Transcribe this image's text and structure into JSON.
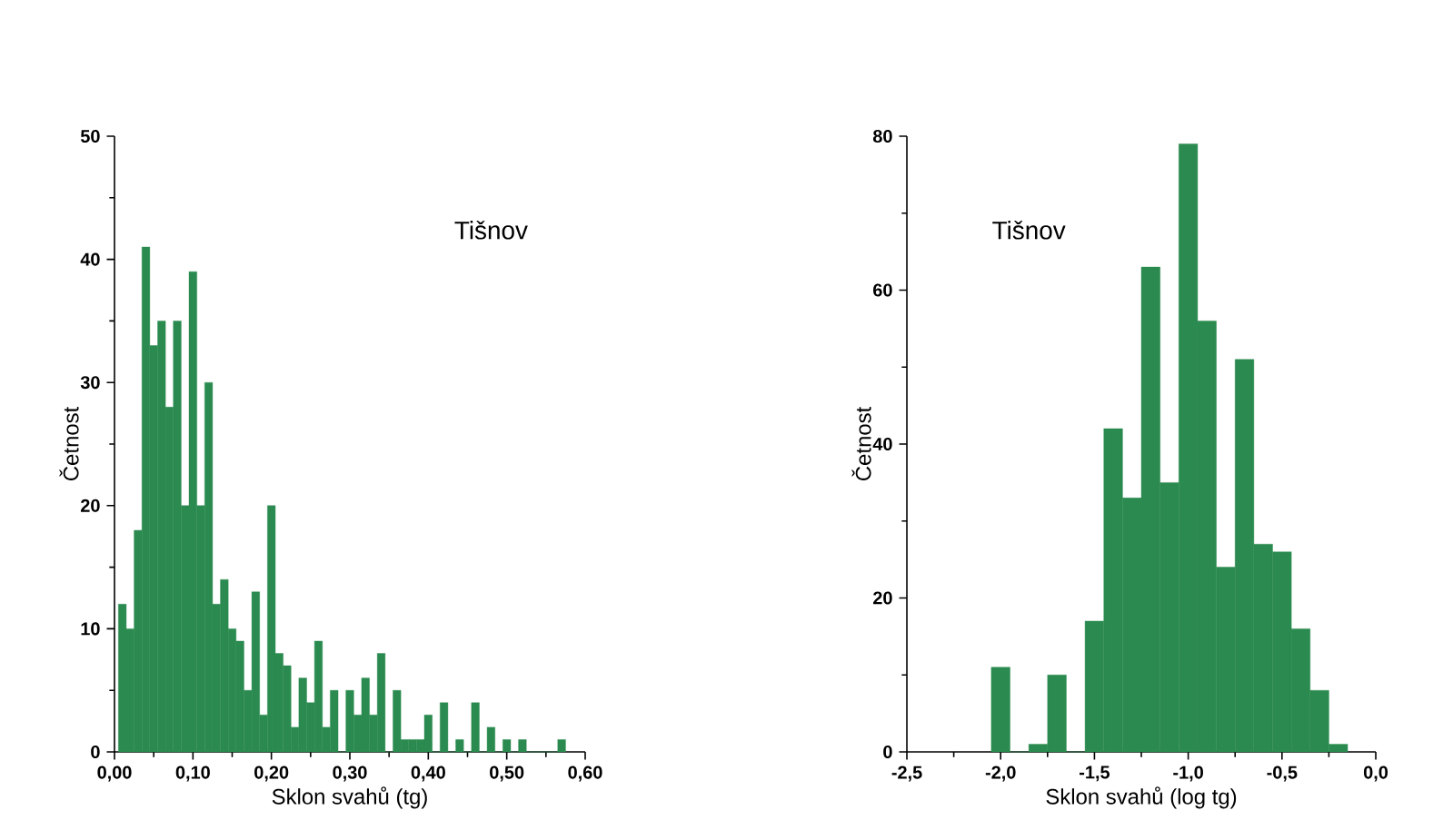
{
  "chart_data": [
    {
      "type": "histogram",
      "title": "Tišnov",
      "xlabel": "Sklon svahů (tg)",
      "ylabel": "Četnost",
      "color": "#2a8a4f",
      "bins": [
        0.005,
        0.015,
        0.025,
        0.035,
        0.045,
        0.055,
        0.065,
        0.075,
        0.085,
        0.095,
        0.105,
        0.115,
        0.125,
        0.135,
        0.145,
        0.155,
        0.165,
        0.175,
        0.185,
        0.195,
        0.205,
        0.215,
        0.225,
        0.235,
        0.245,
        0.255,
        0.265,
        0.275,
        0.285,
        0.295,
        0.305,
        0.315,
        0.325,
        0.335,
        0.345,
        0.355,
        0.365,
        0.375,
        0.385,
        0.395,
        0.405,
        0.415,
        0.425,
        0.435,
        0.445,
        0.455,
        0.465,
        0.475,
        0.485,
        0.495,
        0.505,
        0.515,
        0.525,
        0.535,
        0.545,
        0.555,
        0.565,
        0.575
      ],
      "values": [
        12,
        10,
        18,
        41,
        33,
        35,
        28,
        35,
        20,
        39,
        20,
        30,
        12,
        14,
        10,
        9,
        5,
        13,
        3,
        20,
        8,
        7,
        2,
        6,
        4,
        9,
        2,
        5,
        0,
        5,
        3,
        6,
        3,
        8,
        0,
        5,
        1,
        1,
        1,
        3,
        0,
        4,
        0,
        1,
        0,
        4,
        0,
        2,
        0,
        1,
        0,
        1,
        0,
        0,
        0,
        0,
        1
      ],
      "xlim": [
        0,
        0.6
      ],
      "ylim": [
        0,
        50
      ],
      "xticks": [
        {
          "value": 0,
          "label": "0,00"
        },
        {
          "value": 0.1,
          "label": "0,10"
        },
        {
          "value": 0.2,
          "label": "0,20"
        },
        {
          "value": 0.3,
          "label": "0,30"
        },
        {
          "value": 0.4,
          "label": "0,40"
        },
        {
          "value": 0.5,
          "label": "0,50"
        },
        {
          "value": 0.6,
          "label": "0,60"
        }
      ],
      "yticks": [
        0,
        10,
        20,
        30,
        40,
        50
      ]
    },
    {
      "type": "histogram",
      "title": "Tišnov",
      "xlabel": "Sklon svahů (log tg)",
      "ylabel": "Četnost",
      "color": "#2a8a4f",
      "bins": [
        -2.05,
        -1.95,
        -1.85,
        -1.75,
        -1.65,
        -1.55,
        -1.45,
        -1.35,
        -1.25,
        -1.15,
        -1.05,
        -0.95,
        -0.85,
        -0.75,
        -0.65,
        -0.55,
        -0.45,
        -0.35,
        -0.25,
        -0.15
      ],
      "values": [
        11,
        0,
        1,
        10,
        0,
        17,
        42,
        33,
        63,
        35,
        79,
        56,
        24,
        51,
        27,
        26,
        16,
        8,
        1
      ],
      "xlim": [
        -2.5,
        0.0
      ],
      "ylim": [
        0,
        80
      ],
      "xticks": [
        {
          "value": -2.5,
          "label": "-2,5"
        },
        {
          "value": -2.0,
          "label": "-2,0"
        },
        {
          "value": -1.5,
          "label": "-1,5"
        },
        {
          "value": -1.0,
          "label": "-1,0"
        },
        {
          "value": -0.5,
          "label": "-0,5"
        },
        {
          "value": 0.0,
          "label": "0,0"
        }
      ],
      "yticks": [
        0,
        20,
        40,
        60,
        80
      ]
    }
  ]
}
